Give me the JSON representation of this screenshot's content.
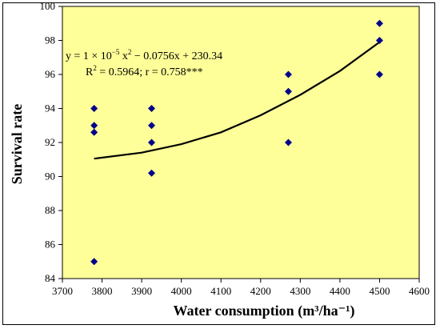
{
  "chart_data": {
    "type": "scatter",
    "title": "",
    "xlabel": "Water consumption (m³/ha⁻¹)",
    "ylabel": "Survival rate",
    "xlim": [
      3700,
      4600
    ],
    "ylim": [
      84,
      100
    ],
    "x_ticks": [
      3700,
      3800,
      3900,
      4000,
      4100,
      4200,
      4300,
      4400,
      4500,
      4600
    ],
    "y_ticks": [
      84,
      86,
      88,
      90,
      92,
      94,
      96,
      98,
      100
    ],
    "grid": false,
    "plot_background": "#ffff99",
    "marker_color": "#00008b",
    "curve_color": "#000000",
    "points": [
      {
        "x": 3780,
        "y": 94
      },
      {
        "x": 3780,
        "y": 93
      },
      {
        "x": 3780,
        "y": 92.6
      },
      {
        "x": 3780,
        "y": 85
      },
      {
        "x": 3925,
        "y": 94
      },
      {
        "x": 3925,
        "y": 93
      },
      {
        "x": 3925,
        "y": 92
      },
      {
        "x": 3925,
        "y": 90.2
      },
      {
        "x": 4270,
        "y": 96
      },
      {
        "x": 4270,
        "y": 95
      },
      {
        "x": 4270,
        "y": 92
      },
      {
        "x": 4500,
        "y": 99
      },
      {
        "x": 4500,
        "y": 98
      },
      {
        "x": 4500,
        "y": 96
      }
    ],
    "trendline": {
      "type": "polynomial",
      "x_range": [
        3780,
        4500
      ],
      "fitted": [
        {
          "x": 3780,
          "y": 91.05
        },
        {
          "x": 3900,
          "y": 91.4
        },
        {
          "x": 4000,
          "y": 91.9
        },
        {
          "x": 4100,
          "y": 92.6
        },
        {
          "x": 4200,
          "y": 93.6
        },
        {
          "x": 4300,
          "y": 94.8
        },
        {
          "x": 4400,
          "y": 96.2
        },
        {
          "x": 4500,
          "y": 97.9
        }
      ]
    },
    "annotation": {
      "equation": {
        "prefix": "y = 1 × 10",
        "exp1": "−5",
        "mid": " x",
        "exp2": "2",
        "suffix": "  − 0.0756x + 230.34"
      },
      "stats": {
        "r_prefix": "R",
        "r_exp": "2",
        "rest": "  = 0.5964; r = 0.758***"
      }
    }
  }
}
